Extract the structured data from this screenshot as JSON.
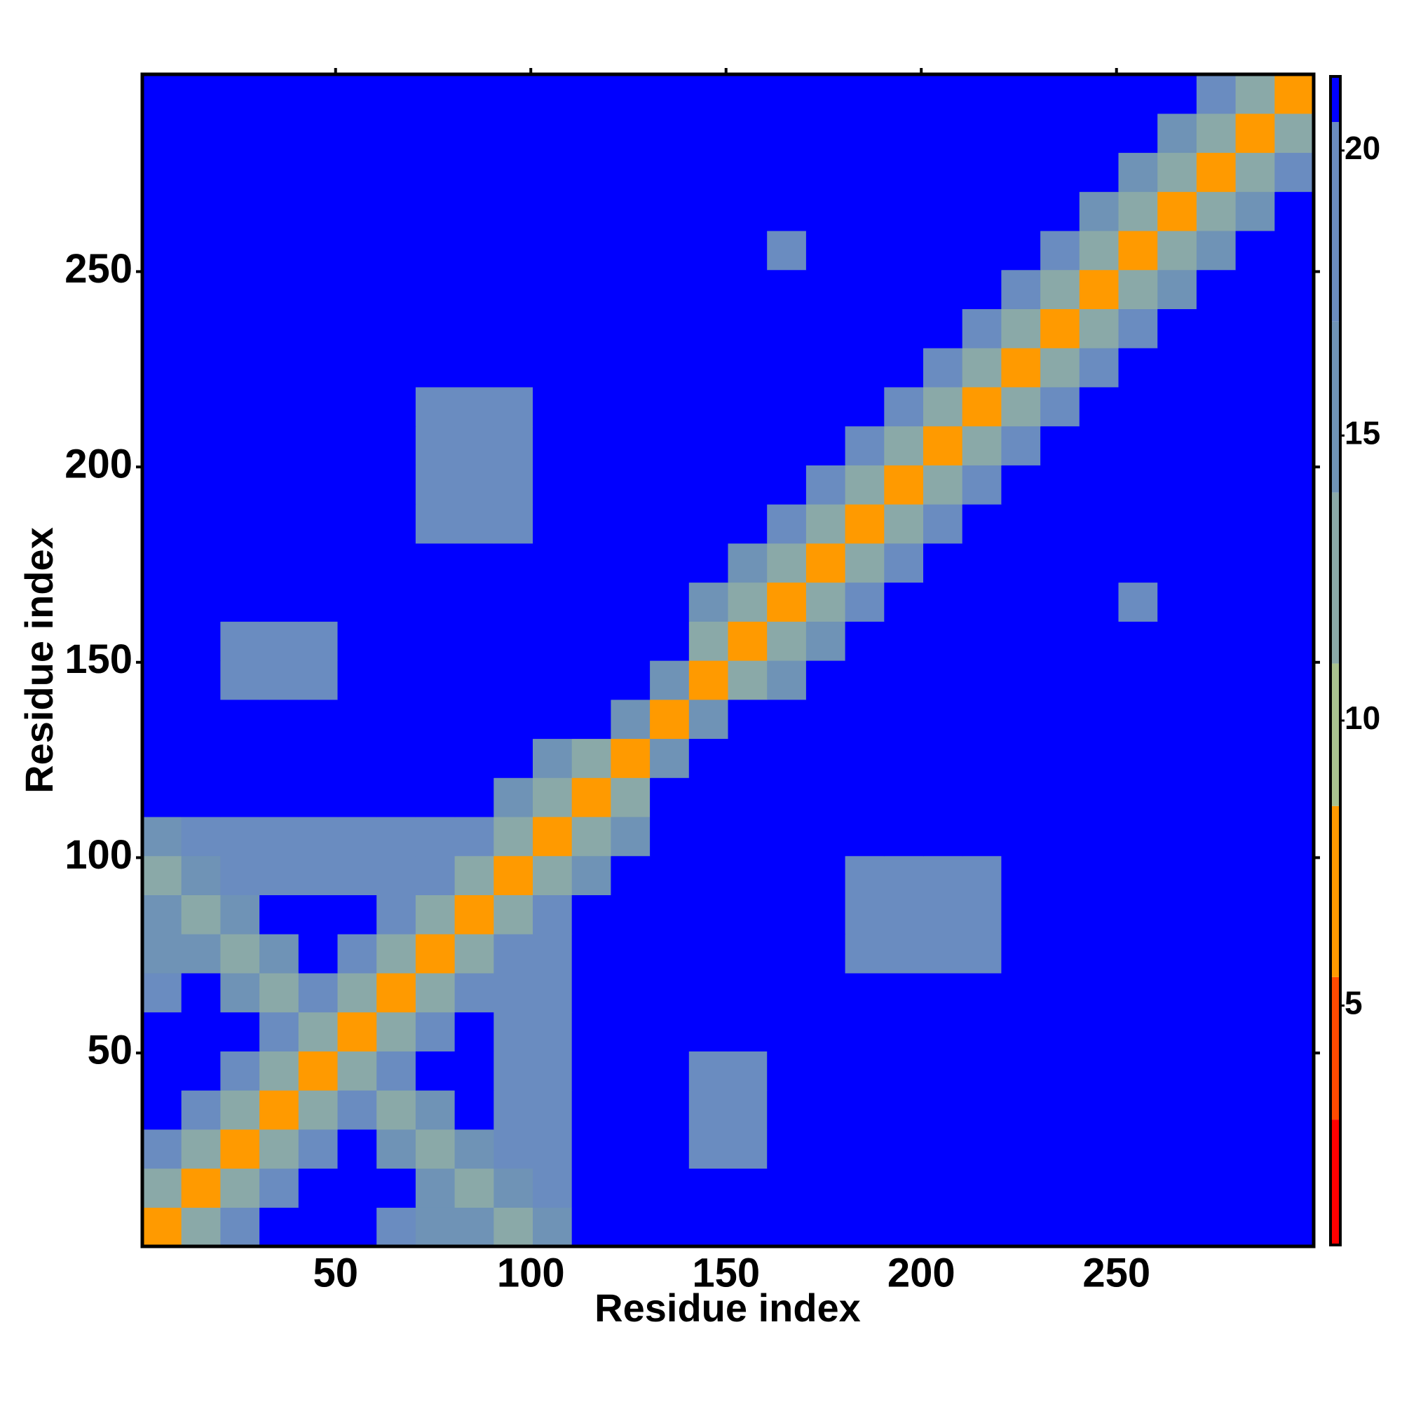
{
  "chart_data": {
    "type": "heatmap",
    "x_label": "Residue index",
    "y_label": "Residue index",
    "x": [
      5.5,
      15.5,
      25.5,
      35.5,
      45.5,
      55.5,
      65.5,
      75.5,
      85.5,
      95.5,
      105.5,
      115.5,
      125.5,
      135.5,
      145.5,
      155.5,
      165.5,
      175.5,
      185.5,
      195.5,
      205.5,
      215.5,
      225.5,
      235.5,
      245.5,
      255.5,
      265.5,
      275.5,
      285.5,
      295.5
    ],
    "y": [
      5.5,
      15.5,
      25.5,
      35.5,
      45.5,
      55.5,
      65.5,
      75.5,
      85.5,
      95.5,
      105.5,
      115.5,
      125.5,
      135.5,
      145.5,
      155.5,
      165.5,
      175.5,
      185.5,
      195.5,
      205.5,
      215.5,
      225.5,
      235.5,
      245.5,
      255.5,
      265.5,
      275.5,
      285.5,
      295.5
    ],
    "z": [
      [
        6,
        12,
        19,
        21,
        21,
        21,
        19,
        17,
        17,
        14,
        17,
        21,
        21,
        21,
        21,
        21,
        21,
        21,
        21,
        21,
        21,
        21,
        21,
        21,
        21,
        21,
        21,
        21,
        21,
        21
      ],
      [
        12,
        6,
        12,
        19,
        21,
        21,
        21,
        17,
        14,
        17,
        19,
        21,
        21,
        21,
        21,
        21,
        21,
        21,
        21,
        21,
        21,
        21,
        21,
        21,
        21,
        21,
        21,
        21,
        21,
        21
      ],
      [
        19,
        12,
        6,
        12,
        19,
        21,
        17,
        14,
        17,
        20,
        20,
        21,
        21,
        21,
        20,
        20,
        21,
        21,
        21,
        21,
        21,
        21,
        21,
        21,
        21,
        21,
        21,
        21,
        21,
        21
      ],
      [
        21,
        19,
        12,
        6,
        12,
        19,
        14,
        17,
        21,
        20,
        20,
        21,
        21,
        21,
        20,
        20,
        21,
        21,
        21,
        21,
        21,
        21,
        21,
        21,
        21,
        21,
        21,
        21,
        21,
        21
      ],
      [
        21,
        21,
        19,
        12,
        6,
        12,
        19,
        21,
        21,
        20,
        20,
        21,
        21,
        21,
        20,
        20,
        21,
        21,
        21,
        21,
        21,
        21,
        21,
        21,
        21,
        21,
        21,
        21,
        21,
        21
      ],
      [
        21,
        21,
        21,
        19,
        12,
        6,
        12,
        19,
        21,
        20,
        20,
        21,
        21,
        21,
        21,
        21,
        21,
        21,
        21,
        21,
        21,
        21,
        21,
        21,
        21,
        21,
        21,
        21,
        21,
        21
      ],
      [
        19,
        21,
        17,
        14,
        19,
        12,
        6,
        12,
        19,
        20,
        20,
        21,
        21,
        21,
        21,
        21,
        21,
        21,
        21,
        21,
        21,
        21,
        21,
        21,
        21,
        21,
        21,
        21,
        21,
        21
      ],
      [
        17,
        17,
        14,
        17,
        21,
        19,
        12,
        6,
        12,
        19,
        20,
        21,
        21,
        21,
        21,
        21,
        21,
        21,
        20,
        20,
        20,
        20,
        21,
        21,
        21,
        21,
        21,
        21,
        21,
        21
      ],
      [
        17,
        14,
        17,
        21,
        21,
        21,
        19,
        12,
        6,
        12,
        19,
        21,
        21,
        21,
        21,
        21,
        21,
        21,
        20,
        20,
        20,
        20,
        21,
        21,
        21,
        21,
        21,
        21,
        21,
        21
      ],
      [
        14,
        17,
        20,
        20,
        20,
        20,
        20,
        19,
        12,
        6,
        12,
        17,
        21,
        21,
        21,
        21,
        21,
        21,
        20,
        20,
        20,
        20,
        21,
        21,
        21,
        21,
        21,
        21,
        21,
        21
      ],
      [
        17,
        19,
        20,
        20,
        20,
        20,
        20,
        20,
        19,
        12,
        6,
        12,
        17,
        21,
        21,
        21,
        21,
        21,
        21,
        21,
        21,
        21,
        21,
        21,
        21,
        21,
        21,
        21,
        21,
        21
      ],
      [
        21,
        21,
        21,
        21,
        21,
        21,
        21,
        21,
        21,
        17,
        12,
        6,
        12,
        21,
        21,
        21,
        21,
        21,
        21,
        21,
        21,
        21,
        21,
        21,
        21,
        21,
        21,
        21,
        21,
        21
      ],
      [
        21,
        21,
        21,
        21,
        21,
        21,
        21,
        21,
        21,
        21,
        17,
        12,
        6,
        15,
        21,
        21,
        21,
        21,
        21,
        21,
        21,
        21,
        21,
        21,
        21,
        21,
        21,
        21,
        21,
        21
      ],
      [
        21,
        21,
        21,
        21,
        21,
        21,
        21,
        21,
        21,
        21,
        21,
        21,
        15,
        6,
        15,
        21,
        21,
        21,
        21,
        21,
        21,
        21,
        21,
        21,
        21,
        21,
        21,
        21,
        21,
        21
      ],
      [
        21,
        21,
        20,
        20,
        20,
        21,
        21,
        21,
        21,
        21,
        21,
        21,
        21,
        15,
        6,
        12,
        17,
        21,
        21,
        21,
        21,
        21,
        21,
        21,
        21,
        21,
        21,
        21,
        21,
        21
      ],
      [
        21,
        21,
        20,
        20,
        20,
        21,
        21,
        21,
        21,
        21,
        21,
        21,
        21,
        21,
        12,
        6,
        12,
        17,
        21,
        21,
        21,
        21,
        21,
        21,
        21,
        21,
        21,
        21,
        21,
        21
      ],
      [
        21,
        21,
        21,
        21,
        21,
        21,
        21,
        21,
        21,
        21,
        21,
        21,
        21,
        21,
        17,
        12,
        6,
        12,
        19,
        21,
        21,
        21,
        21,
        21,
        21,
        20,
        21,
        21,
        21,
        21
      ],
      [
        21,
        21,
        21,
        21,
        21,
        21,
        21,
        21,
        21,
        21,
        21,
        21,
        21,
        21,
        21,
        17,
        12,
        6,
        12,
        19,
        21,
        21,
        21,
        21,
        21,
        21,
        21,
        21,
        21,
        21
      ],
      [
        21,
        21,
        21,
        21,
        21,
        21,
        21,
        20,
        20,
        20,
        21,
        21,
        21,
        21,
        21,
        21,
        19,
        12,
        6,
        12,
        19,
        21,
        21,
        21,
        21,
        21,
        21,
        21,
        21,
        21
      ],
      [
        21,
        21,
        21,
        21,
        21,
        21,
        21,
        20,
        20,
        20,
        21,
        21,
        21,
        21,
        21,
        21,
        21,
        19,
        12,
        6,
        12,
        19,
        21,
        21,
        21,
        21,
        21,
        21,
        21,
        21
      ],
      [
        21,
        21,
        21,
        21,
        21,
        21,
        21,
        20,
        20,
        20,
        21,
        21,
        21,
        21,
        21,
        21,
        21,
        21,
        19,
        12,
        6,
        12,
        19,
        21,
        21,
        21,
        21,
        21,
        21,
        21
      ],
      [
        21,
        21,
        21,
        21,
        21,
        21,
        21,
        20,
        20,
        20,
        21,
        21,
        21,
        21,
        21,
        21,
        21,
        21,
        21,
        19,
        12,
        6,
        12,
        19,
        21,
        21,
        21,
        21,
        21,
        21
      ],
      [
        21,
        21,
        21,
        21,
        21,
        21,
        21,
        21,
        21,
        21,
        21,
        21,
        21,
        21,
        21,
        21,
        21,
        21,
        21,
        21,
        19,
        12,
        6,
        12,
        19,
        21,
        21,
        21,
        21,
        21
      ],
      [
        21,
        21,
        21,
        21,
        21,
        21,
        21,
        21,
        21,
        21,
        21,
        21,
        21,
        21,
        21,
        21,
        21,
        21,
        21,
        21,
        21,
        19,
        12,
        6,
        12,
        19,
        21,
        21,
        21,
        21
      ],
      [
        21,
        21,
        21,
        21,
        21,
        21,
        21,
        21,
        21,
        21,
        21,
        21,
        21,
        21,
        21,
        21,
        21,
        21,
        21,
        21,
        21,
        21,
        19,
        12,
        6,
        12,
        17,
        21,
        21,
        21
      ],
      [
        21,
        21,
        21,
        21,
        21,
        21,
        21,
        21,
        21,
        21,
        21,
        21,
        21,
        21,
        21,
        21,
        20,
        21,
        21,
        21,
        21,
        21,
        21,
        19,
        12,
        6,
        12,
        17,
        21,
        21
      ],
      [
        21,
        21,
        21,
        21,
        21,
        21,
        21,
        21,
        21,
        21,
        21,
        21,
        21,
        21,
        21,
        21,
        21,
        21,
        21,
        21,
        21,
        21,
        21,
        21,
        17,
        12,
        6,
        12,
        17,
        21
      ],
      [
        21,
        21,
        21,
        21,
        21,
        21,
        21,
        21,
        21,
        21,
        21,
        21,
        21,
        21,
        21,
        21,
        21,
        21,
        21,
        21,
        21,
        21,
        21,
        21,
        21,
        17,
        12,
        6,
        12,
        19
      ],
      [
        21,
        21,
        21,
        21,
        21,
        21,
        21,
        21,
        21,
        21,
        21,
        21,
        21,
        21,
        21,
        21,
        21,
        21,
        21,
        21,
        21,
        21,
        21,
        21,
        21,
        21,
        17,
        12,
        6,
        12
      ],
      [
        21,
        21,
        21,
        21,
        21,
        21,
        21,
        21,
        21,
        21,
        21,
        21,
        21,
        21,
        21,
        21,
        21,
        21,
        21,
        21,
        21,
        21,
        21,
        21,
        21,
        21,
        21,
        19,
        12,
        6
      ]
    ],
    "xlim": [
      0.5,
      300.5
    ],
    "ylim": [
      0.5,
      300.5
    ],
    "xticks": [
      50,
      100,
      150,
      200,
      250
    ],
    "yticks": [
      50,
      100,
      150,
      200,
      250
    ],
    "zlim": [
      0.8,
      21.3
    ],
    "zticks": [
      5,
      10,
      15,
      20
    ],
    "colorscale": {
      "levels": [
        0.8,
        3,
        5.5,
        8.5,
        11,
        14,
        17,
        20.5,
        21.3
      ],
      "colors": [
        "#ff0000",
        "#ff4a00",
        "#ff9a00",
        "#a9c28e",
        "#8aa9a8",
        "#6f93b6",
        "#6a8cc0",
        "#0000ff"
      ]
    }
  }
}
